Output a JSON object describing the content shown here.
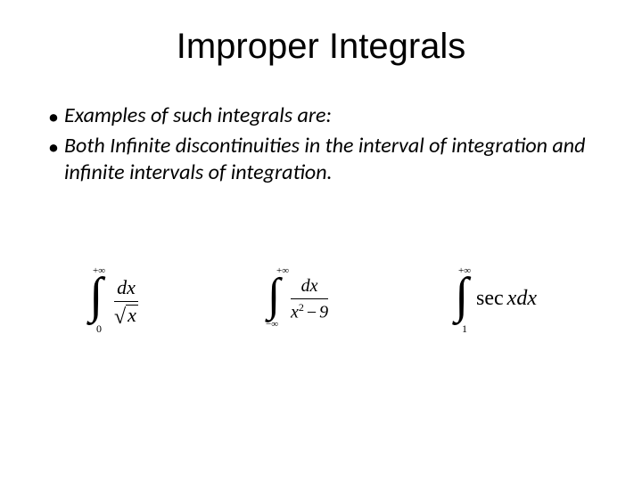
{
  "title": "Improper Integrals",
  "bullets": [
    "Examples of such integrals are:",
    "Both Infinite discontinuities in the interval of integration and infinite intervals of integration."
  ],
  "equations": {
    "eq1": {
      "upper_limit": "+∞",
      "lower_limit": "0",
      "numerator": "dx",
      "sqrt_arg": "x"
    },
    "eq2": {
      "upper_limit": "+∞",
      "lower_limit": "−∞",
      "numerator": "dx",
      "den_base": "x",
      "den_exp": "2",
      "den_minus": "−",
      "den_const": "9"
    },
    "eq3": {
      "upper_limit": "+∞",
      "lower_limit": "1",
      "func": "sec",
      "var": "x",
      "dx": "dx"
    }
  },
  "style": {
    "background": "#ffffff",
    "text_color": "#000000",
    "title_fontsize": 40,
    "body_fontsize": 24,
    "body_italic": true,
    "eq_font": "Times New Roman"
  }
}
